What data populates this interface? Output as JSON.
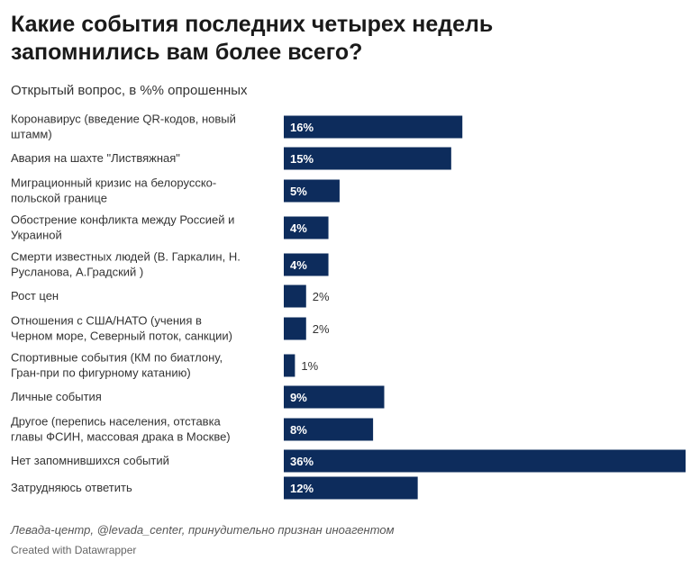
{
  "header": {
    "title": "Какие события последних четырех недель запомнились вам более всего?",
    "subtitle": "Открытый вопрос, в %% опрошенных"
  },
  "footer": {
    "source": "Левада-центр, @levada_center, принудительно признан иноагентом",
    "credit": "Created with Datawrapper"
  },
  "colors": {
    "bar": "#0d2c5c"
  },
  "chart_data": {
    "type": "bar",
    "orientation": "horizontal",
    "title": "Какие события последних четырех недель запомнились вам более всего?",
    "subtitle": "Открытый вопрос, в %% опрошенных",
    "unit": "%",
    "xlim": [
      0,
      36
    ],
    "categories": [
      [
        "Коронавирус (введение QR-кодов, новый",
        "штамм)"
      ],
      [
        "Авария на шахте \"Листвяжная\""
      ],
      [
        "Миграционный кризис на белорусско-",
        "польской границе"
      ],
      [
        "Обострение конфликта между Россией и",
        "Украиной"
      ],
      [
        "Смерти известных людей (В. Гаркалин, Н.",
        "Русланова, А.Градский )"
      ],
      [
        "Рост цен"
      ],
      [
        "Отношения с США/НАТО (учения в",
        "Черном море, Северный поток, санкции)"
      ],
      [
        "Спортивные события (КМ по биатлону,",
        "Гран-при по фигурному катанию)"
      ],
      [
        "Личные события"
      ],
      [
        "Другое (перепись населения, отставка",
        "главы ФСИН, массовая драка в Москве)"
      ],
      [
        "Нет запомнившихся событий"
      ],
      [
        "Затрудняюсь ответить"
      ]
    ],
    "values": [
      16,
      15,
      5,
      4,
      4,
      2,
      2,
      1,
      9,
      8,
      36,
      12
    ],
    "value_labels": [
      "16%",
      "15%",
      "5%",
      "4%",
      "4%",
      "2%",
      "2%",
      "1%",
      "9%",
      "8%",
      "36%",
      "12%"
    ]
  }
}
